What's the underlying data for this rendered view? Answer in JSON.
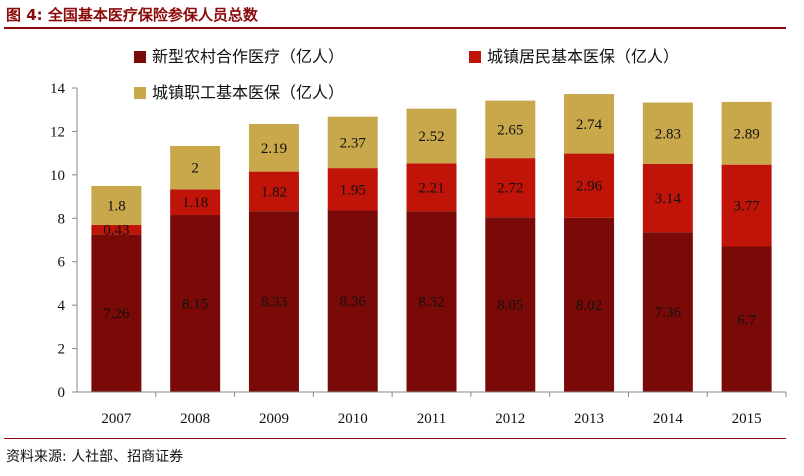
{
  "header": {
    "title": "图 4: 全国基本医疗保险参保人员总数"
  },
  "footer": {
    "source": "资料来源: 人社部、招商证券"
  },
  "colors": {
    "accent": "#8b0a0a",
    "series": [
      "#7a0a07",
      "#c01408",
      "#c8a84b"
    ]
  },
  "chart_data": {
    "type": "bar",
    "stacked": true,
    "categories": [
      "2007",
      "2008",
      "2009",
      "2010",
      "2011",
      "2012",
      "2013",
      "2014",
      "2015"
    ],
    "series": [
      {
        "name": "新型农村合作医疗（亿人）",
        "values": [
          7.26,
          8.15,
          8.33,
          8.36,
          8.32,
          8.05,
          8.02,
          7.36,
          6.7
        ]
      },
      {
        "name": "城镇居民基本医保（亿人）",
        "values": [
          0.43,
          1.18,
          1.82,
          1.95,
          2.21,
          2.72,
          2.96,
          3.14,
          3.77
        ]
      },
      {
        "name": "城镇职工基本医保（亿人）",
        "values": [
          1.8,
          2,
          2.19,
          2.37,
          2.52,
          2.65,
          2.74,
          2.83,
          2.89
        ]
      }
    ],
    "ylim": [
      0,
      14
    ],
    "yticks": [
      0,
      2,
      4,
      6,
      8,
      10,
      12,
      14
    ],
    "grid": false,
    "legend_position": "top"
  }
}
